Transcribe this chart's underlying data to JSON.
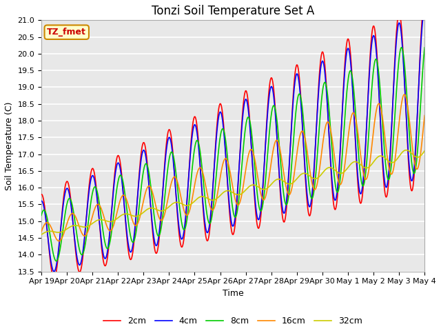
{
  "title": "Tonzi Soil Temperature Set A",
  "xlabel": "Time",
  "ylabel": "Soil Temperature (C)",
  "ylim": [
    13.5,
    21.0
  ],
  "tick_labels": [
    "Apr 19",
    "Apr 20",
    "Apr 21",
    "Apr 22",
    "Apr 23",
    "Apr 24",
    "Apr 25",
    "Apr 26",
    "Apr 27",
    "Apr 28",
    "Apr 29",
    "Apr 30",
    "May 1",
    "May 2",
    "May 3",
    "May 4"
  ],
  "legend_labels": [
    "2cm",
    "4cm",
    "8cm",
    "16cm",
    "32cm"
  ],
  "legend_colors": [
    "#ff0000",
    "#0000ff",
    "#00cc00",
    "#ff8800",
    "#cccc00"
  ],
  "annotation_text": "TZ_fmet",
  "annotation_box_color": "#ffffcc",
  "annotation_border_color": "#cc8800",
  "annotation_text_color": "#cc0000",
  "bg_color": "#ffffff",
  "plot_bg_color": "#e8e8e8",
  "grid_color": "#ffffff",
  "n_points": 1500,
  "start_day": 0,
  "end_day": 15,
  "title_fontsize": 12,
  "label_fontsize": 9,
  "tick_fontsize": 8,
  "legend_fontsize": 9,
  "linewidth": 1.2
}
